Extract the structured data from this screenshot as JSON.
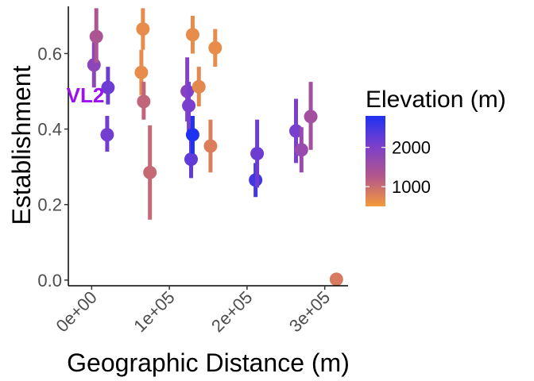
{
  "chart_data": {
    "type": "scatter",
    "xlabel": "Geographic Distance (m)",
    "ylabel": "Establishment",
    "xlim": [
      -30000,
      330000
    ],
    "ylim": [
      -0.015,
      0.725
    ],
    "x_ticks": [
      0,
      100000,
      200000,
      300000
    ],
    "x_tick_labels": [
      "0e+00",
      "1e+05",
      "2e+05",
      "3e+05"
    ],
    "y_ticks": [
      0.0,
      0.2,
      0.4,
      0.6
    ],
    "y_tick_labels": [
      "0.0",
      "0.2",
      "0.4",
      "0.6"
    ],
    "grid": false,
    "legend": {
      "title": "Elevation (m)",
      "placement": "right",
      "type": "colorbar",
      "range": [
        500,
        2800
      ],
      "ticks": [
        1000,
        2000
      ],
      "tick_labels": [
        "1000",
        "2000"
      ],
      "colors": [
        "#F4993A",
        "#B3578C",
        "#7B3FCC",
        "#1F32F0"
      ]
    },
    "annotations": [
      {
        "text": "VL2",
        "x": -8000,
        "y": 0.49,
        "color": "#9A10F0"
      }
    ],
    "points": [
      {
        "x": 3000,
        "y": 0.57,
        "ylo": 0.51,
        "yhi": 0.63,
        "elev": 1800
      },
      {
        "x": 6000,
        "y": 0.645,
        "ylo": 0.575,
        "yhi": 0.72,
        "elev": 1350
      },
      {
        "x": 21000,
        "y": 0.51,
        "ylo": 0.465,
        "yhi": 0.565,
        "elev": 2150
      },
      {
        "x": 20000,
        "y": 0.385,
        "ylo": 0.34,
        "yhi": 0.435,
        "elev": 2100
      },
      {
        "x": 64000,
        "y": 0.55,
        "ylo": 0.49,
        "yhi": 0.61,
        "elev": 650
      },
      {
        "x": 66000,
        "y": 0.665,
        "ylo": 0.61,
        "yhi": 0.72,
        "elev": 650
      },
      {
        "x": 67000,
        "y": 0.473,
        "ylo": 0.425,
        "yhi": 0.525,
        "elev": 1100
      },
      {
        "x": 75000,
        "y": 0.285,
        "ylo": 0.16,
        "yhi": 0.41,
        "elev": 1050
      },
      {
        "x": 123000,
        "y": 0.5,
        "ylo": 0.42,
        "yhi": 0.59,
        "elev": 1900
      },
      {
        "x": 125000,
        "y": 0.462,
        "ylo": 0.395,
        "yhi": 0.525,
        "elev": 2050
      },
      {
        "x": 128000,
        "y": 0.32,
        "ylo": 0.27,
        "yhi": 0.37,
        "elev": 2250
      },
      {
        "x": 130000,
        "y": 0.385,
        "ylo": 0.335,
        "yhi": 0.435,
        "elev": 2800
      },
      {
        "x": 130000,
        "y": 0.65,
        "ylo": 0.6,
        "yhi": 0.7,
        "elev": 650
      },
      {
        "x": 138000,
        "y": 0.512,
        "ylo": 0.46,
        "yhi": 0.565,
        "elev": 700
      },
      {
        "x": 153000,
        "y": 0.355,
        "ylo": 0.285,
        "yhi": 0.425,
        "elev": 800
      },
      {
        "x": 159000,
        "y": 0.615,
        "ylo": 0.565,
        "yhi": 0.665,
        "elev": 650
      },
      {
        "x": 211000,
        "y": 0.265,
        "ylo": 0.22,
        "yhi": 0.31,
        "elev": 2500
      },
      {
        "x": 213000,
        "y": 0.335,
        "ylo": 0.245,
        "yhi": 0.425,
        "elev": 2150
      },
      {
        "x": 263000,
        "y": 0.395,
        "ylo": 0.31,
        "yhi": 0.48,
        "elev": 2050
      },
      {
        "x": 270000,
        "y": 0.345,
        "ylo": 0.285,
        "yhi": 0.405,
        "elev": 1650
      },
      {
        "x": 282000,
        "y": 0.433,
        "ylo": 0.345,
        "yhi": 0.525,
        "elev": 1500
      },
      {
        "x": 315000,
        "y": 0.002,
        "ylo": 0.002,
        "yhi": 0.002,
        "elev": 850
      }
    ]
  }
}
